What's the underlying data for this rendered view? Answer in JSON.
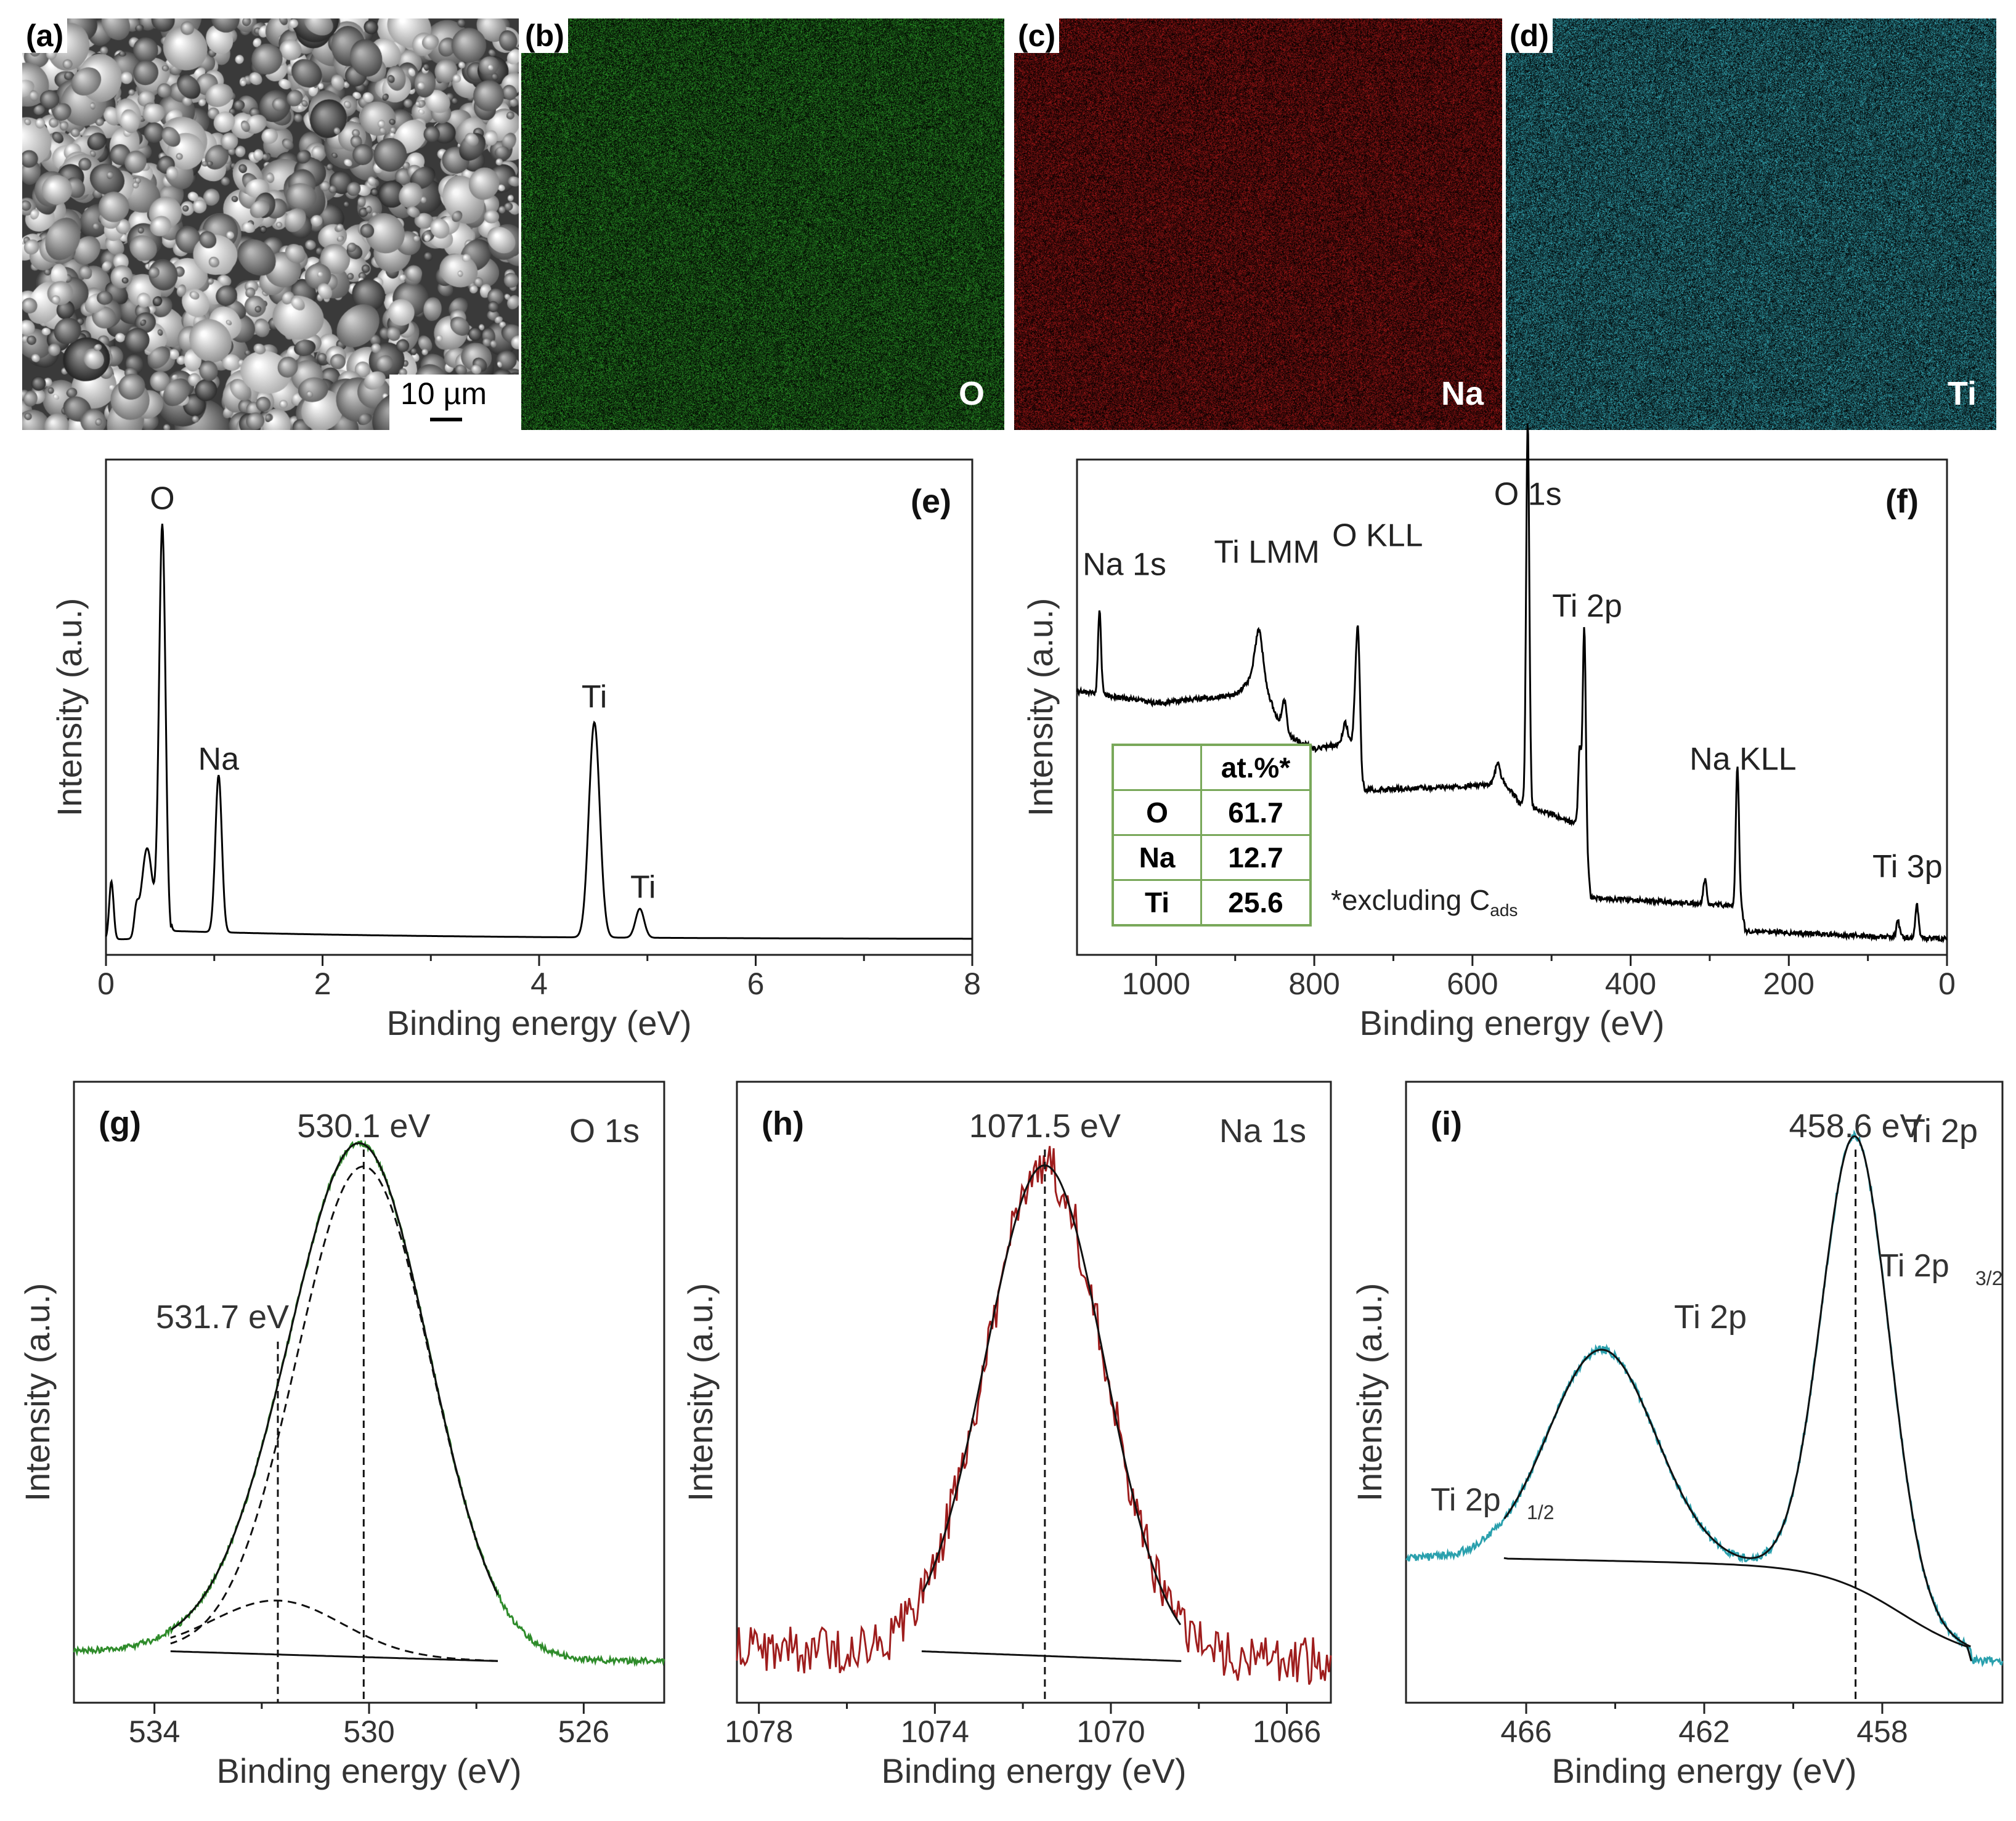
{
  "maps": {
    "a": {
      "tag": "(a)",
      "scale": "10 µm"
    },
    "b": {
      "tag": "(b)",
      "element": "O",
      "color": "#2ea02a"
    },
    "c": {
      "tag": "(c)",
      "element": "Na",
      "color": "#b01818"
    },
    "d": {
      "tag": "(d)",
      "element": "Ti",
      "color": "#3ab7c6"
    }
  },
  "table": {
    "header": "at.%*",
    "rows": [
      {
        "element": "O",
        "value": "61.7"
      },
      {
        "element": "Na",
        "value": "12.7"
      },
      {
        "element": "Ti",
        "value": "25.6"
      }
    ],
    "note": "*excluding C",
    "note_sub": "ads"
  },
  "chart_data": [
    {
      "id": "e",
      "type": "line",
      "panel_label": "(e)",
      "xlabel": "Binding energy (eV)",
      "ylabel": "Intensity (a.u.)",
      "xlim": [
        0,
        8
      ],
      "reversed": false,
      "xticks": [
        0,
        2,
        4,
        6,
        8
      ],
      "xtick_labels": [
        "0",
        "2",
        "4",
        "6",
        "8"
      ],
      "series": [
        {
          "name": "EDS spectrum",
          "color": "#000000",
          "peaks": [
            [
              0.05,
              0.14,
              0.02
            ],
            [
              0.28,
              0.06,
              0.02
            ],
            [
              0.38,
              0.22,
              0.05
            ],
            [
              0.52,
              1.0,
              0.03
            ],
            [
              1.04,
              0.38,
              0.03
            ],
            [
              4.51,
              0.52,
              0.05
            ],
            [
              4.93,
              0.07,
              0.04
            ]
          ],
          "baseline": 0.02
        }
      ],
      "annotations": [
        {
          "text": "O",
          "x": 0.52,
          "y": 1.06
        },
        {
          "text": "Na",
          "x": 1.04,
          "y": 0.43
        },
        {
          "text": "Ti",
          "x": 4.51,
          "y": 0.58
        },
        {
          "text": "Ti",
          "x": 4.96,
          "y": 0.12
        }
      ]
    },
    {
      "id": "f",
      "type": "line",
      "panel_label": "(f)",
      "xlabel": "Binding energy (eV)",
      "ylabel": "Intensity (a.u.)",
      "xlim": [
        0,
        1100
      ],
      "reversed": true,
      "xticks": [
        1000,
        800,
        600,
        400,
        200,
        0
      ],
      "xtick_labels": [
        "1000",
        "800",
        "600",
        "400",
        "200",
        "0"
      ],
      "series": [
        {
          "name": "XPS survey",
          "color": "#000000",
          "steps": [
            [
              1100,
              0.62
            ],
            [
              1000,
              0.59
            ],
            [
              900,
              0.61
            ],
            [
              870,
              0.67
            ],
            [
              840,
              0.52
            ],
            [
              800,
              0.48
            ],
            [
              745,
              0.5
            ],
            [
              740,
              0.38
            ],
            [
              600,
              0.39
            ],
            [
              560,
              0.4
            ],
            [
              540,
              0.35
            ],
            [
              470,
              0.3
            ],
            [
              455,
              0.2
            ],
            [
              450,
              0.12
            ],
            [
              260,
              0.1
            ],
            [
              255,
              0.04
            ],
            [
              0,
              0.02
            ]
          ],
          "peaks": [
            [
              1071.5,
              0.2,
              2
            ],
            [
              870,
              0.1,
              5
            ],
            [
              838,
              0.08,
              3
            ],
            [
              761,
              0.05,
              3
            ],
            [
              745,
              0.28,
              3
            ],
            [
              568,
              0.05,
              3
            ],
            [
              530.1,
              0.93,
              2
            ],
            [
              458.6,
              0.55,
              2
            ],
            [
              464.3,
              0.22,
              2
            ],
            [
              306,
              0.06,
              2
            ],
            [
              265,
              0.34,
              2
            ],
            [
              38,
              0.08,
              2
            ],
            [
              62,
              0.04,
              2
            ]
          ],
          "baseline": 0.0
        }
      ],
      "annotations": [
        {
          "text": "Na 1s",
          "x": 1040,
          "y": 0.9
        },
        {
          "text": "Ti LMM",
          "x": 860,
          "y": 0.93
        },
        {
          "text": "O KLL",
          "x": 720,
          "y": 0.97
        },
        {
          "text": "O 1s",
          "x": 530,
          "y": 1.07
        },
        {
          "text": "Ti 2p",
          "x": 455,
          "y": 0.8
        },
        {
          "text": "Na KLL",
          "x": 258,
          "y": 0.43
        },
        {
          "text": "Ti 3p",
          "x": 50,
          "y": 0.17
        }
      ]
    },
    {
      "id": "g",
      "type": "line",
      "panel_label": "(g)",
      "region": "O 1s",
      "xlabel": "Binding energy (eV)",
      "ylabel": "Intensity (a.u.)",
      "xlim": [
        524.5,
        535.5
      ],
      "reversed": true,
      "xticks": [
        534,
        530,
        526
      ],
      "xtick_labels": [
        "534",
        "530",
        "526"
      ],
      "series": [
        {
          "name": "O 1s data",
          "color": "#2e8b2a",
          "components": [
            {
              "center": 530.1,
              "height": 1.0,
              "width": 1.25
            },
            {
              "center": 531.7,
              "height": 0.11,
              "width": 1.2
            }
          ],
          "baseline_line": [
            [
              533.7,
              0.02
            ],
            [
              527.6,
              0.0
            ]
          ],
          "noise": 0.006
        }
      ],
      "peak_labels": [
        {
          "text": "530.1 eV",
          "x": 530.1
        },
        {
          "text": "531.7 eV",
          "x": 531.7
        }
      ]
    },
    {
      "id": "h",
      "type": "line",
      "panel_label": "(h)",
      "region": "Na 1s",
      "xlabel": "Binding energy (eV)",
      "ylabel": "Intensity (a.u.)",
      "xlim": [
        1065,
        1078.5
      ],
      "reversed": true,
      "xticks": [
        1078,
        1074,
        1070,
        1066
      ],
      "xtick_labels": [
        "1078",
        "1074",
        "1070",
        "1066"
      ],
      "series": [
        {
          "name": "Na 1s data",
          "color": "#9e1d1d",
          "components": [
            {
              "center": 1071.5,
              "height": 1.0,
              "width": 1.35
            }
          ],
          "baseline_line": [
            [
              1074.3,
              0.02
            ],
            [
              1068.4,
              0.0
            ]
          ],
          "noise": 0.05
        }
      ],
      "peak_labels": [
        {
          "text": "1071.5 eV",
          "x": 1071.5
        }
      ]
    },
    {
      "id": "i",
      "type": "line",
      "panel_label": "(i)",
      "region": "Ti 2p",
      "xlabel": "Binding energy (eV)",
      "ylabel": "Intensity (a.u.)",
      "xlim": [
        455.3,
        468.7
      ],
      "reversed": true,
      "xticks": [
        466,
        462,
        458
      ],
      "xtick_labels": [
        "466",
        "462",
        "458"
      ],
      "series": [
        {
          "name": "Ti 2p data",
          "color": "#2aa0ad",
          "components": [
            {
              "center": 458.6,
              "height": 0.92,
              "width": 0.75
            },
            {
              "center": 464.3,
              "height": 0.43,
              "width": 1.2
            }
          ],
          "baseline_line": [
            [
              466.5,
              0.21
            ],
            [
              456.0,
              0.0
            ]
          ],
          "noise": 0.008
        }
      ],
      "peak_labels": [
        {
          "text": "458.6 eV",
          "x": 458.6
        }
      ],
      "annotations_text": {
        "main": "Ti 2p",
        "p32": "Ti 2p",
        "p32_sub": "3/2",
        "p12": "Ti 2p",
        "p12_sub": "1/2"
      }
    }
  ]
}
